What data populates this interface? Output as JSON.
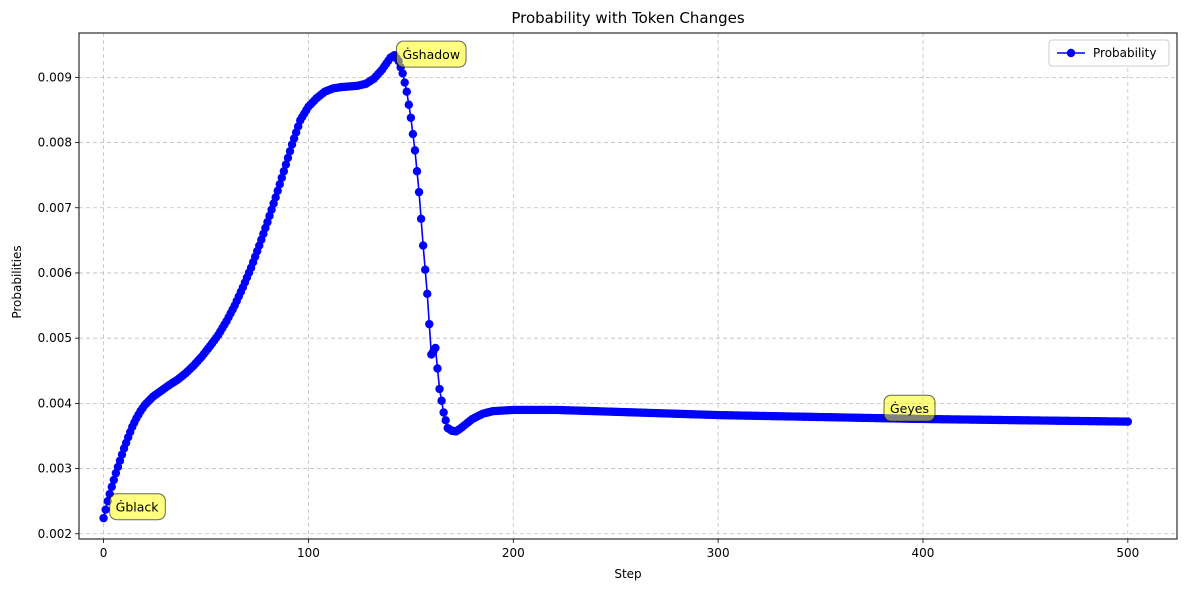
{
  "chart_data": {
    "type": "line",
    "title": "Probability with Token Changes",
    "xlabel": "Step",
    "ylabel": "Probabilities",
    "xlim": [
      -12,
      524
    ],
    "ylim": [
      0.00192,
      0.00968
    ],
    "xticks": [
      0,
      100,
      200,
      300,
      400,
      500
    ],
    "yticks": [
      0.002,
      0.003,
      0.004,
      0.005,
      0.006,
      0.007,
      0.008,
      0.009
    ],
    "ytick_labels": [
      "0.002",
      "0.003",
      "0.004",
      "0.005",
      "0.006",
      "0.007",
      "0.008",
      "0.009"
    ],
    "grid": true,
    "legend_position": "top-right",
    "series": [
      {
        "name": "Probability",
        "color": "#0000ff",
        "marker": "circle",
        "anchors": [
          [
            0,
            0.00224
          ],
          [
            2,
            0.0025
          ],
          [
            4,
            0.00272
          ],
          [
            6,
            0.00293
          ],
          [
            8,
            0.00312
          ],
          [
            10,
            0.00331
          ],
          [
            12,
            0.00348
          ],
          [
            14,
            0.00364
          ],
          [
            16,
            0.00377
          ],
          [
            18,
            0.00388
          ],
          [
            20,
            0.00397
          ],
          [
            24,
            0.0041
          ],
          [
            28,
            0.00419
          ],
          [
            32,
            0.00428
          ],
          [
            36,
            0.00436
          ],
          [
            40,
            0.00446
          ],
          [
            44,
            0.00458
          ],
          [
            48,
            0.00472
          ],
          [
            52,
            0.00488
          ],
          [
            56,
            0.00505
          ],
          [
            60,
            0.00526
          ],
          [
            64,
            0.0055
          ],
          [
            68,
            0.00578
          ],
          [
            72,
            0.00608
          ],
          [
            76,
            0.00642
          ],
          [
            80,
            0.00678
          ],
          [
            84,
            0.00716
          ],
          [
            88,
            0.00756
          ],
          [
            92,
            0.00797
          ],
          [
            96,
            0.00834
          ],
          [
            100,
            0.00855
          ],
          [
            104,
            0.00868
          ],
          [
            108,
            0.00878
          ],
          [
            112,
            0.00883
          ],
          [
            116,
            0.00885
          ],
          [
            120,
            0.00886
          ],
          [
            124,
            0.00887
          ],
          [
            128,
            0.0089
          ],
          [
            132,
            0.00898
          ],
          [
            136,
            0.00912
          ],
          [
            140,
            0.0093
          ],
          [
            142,
            0.00934
          ],
          [
            144,
            0.00925
          ],
          [
            146,
            0.00906
          ],
          [
            148,
            0.00878
          ],
          [
            150,
            0.00838
          ],
          [
            152,
            0.00788
          ],
          [
            154,
            0.00724
          ],
          [
            156,
            0.00642
          ],
          [
            158,
            0.00568
          ],
          [
            160,
            0.00475
          ],
          [
            162,
            0.00485
          ],
          [
            164,
            0.00422
          ],
          [
            166,
            0.00386
          ],
          [
            168,
            0.00362
          ],
          [
            170,
            0.00358
          ],
          [
            172,
            0.00357
          ],
          [
            174,
            0.00361
          ],
          [
            176,
            0.00366
          ],
          [
            180,
            0.00376
          ],
          [
            185,
            0.00384
          ],
          [
            190,
            0.00388
          ],
          [
            200,
            0.0039
          ],
          [
            220,
            0.0039
          ],
          [
            250,
            0.00387
          ],
          [
            300,
            0.00382
          ],
          [
            350,
            0.00379
          ],
          [
            400,
            0.00376
          ],
          [
            450,
            0.00374
          ],
          [
            500,
            0.00372
          ]
        ]
      }
    ],
    "annotations": [
      {
        "text": "Ġblack",
        "x": 2,
        "y": 0.0024
      },
      {
        "text": "Ġshadow",
        "x": 142,
        "y": 0.00934
      },
      {
        "text": "Ġeyes",
        "x": 380,
        "y": 0.00391
      }
    ],
    "legend_label": "Probability",
    "annotation_style": {
      "fill": "#ffff00",
      "opacity": 0.5,
      "border": "#000000"
    }
  }
}
